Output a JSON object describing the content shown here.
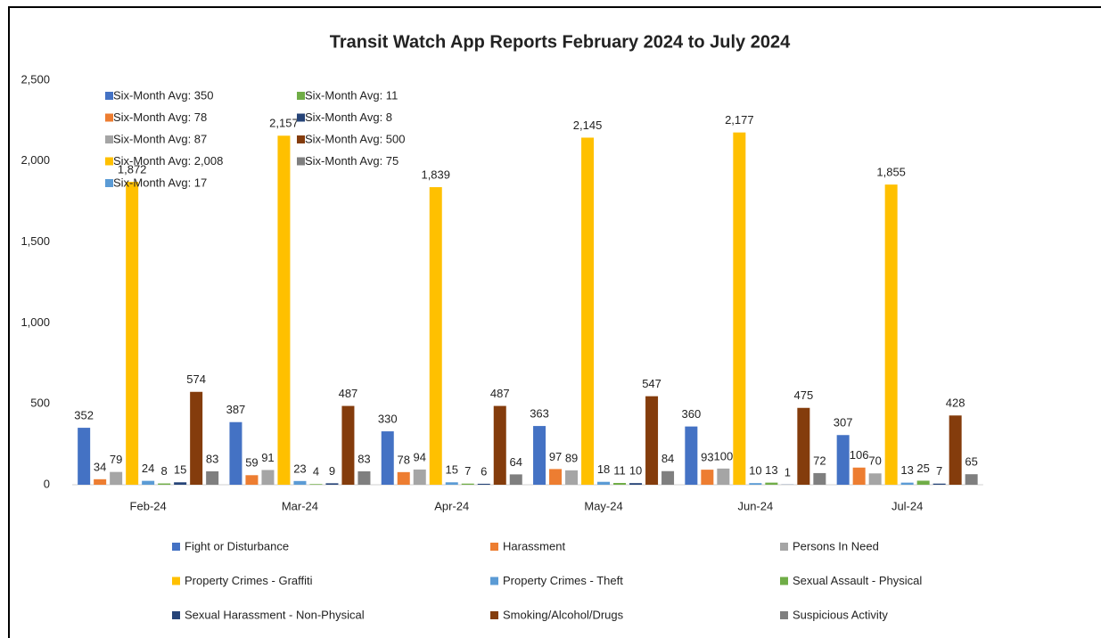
{
  "chart_data": {
    "type": "bar",
    "title": "Transit Watch App Reports February 2024 to July 2024",
    "categories": [
      "Feb-24",
      "Mar-24",
      "Apr-24",
      "May-24",
      "Jun-24",
      "Jul-24"
    ],
    "series": [
      {
        "name": "Fight or Disturbance",
        "color": "#4472c4",
        "values": [
          352,
          387,
          330,
          363,
          360,
          307
        ]
      },
      {
        "name": "Harassment",
        "color": "#ed7d31",
        "values": [
          34,
          59,
          78,
          97,
          93,
          106
        ]
      },
      {
        "name": "Persons In Need",
        "color": "#a5a5a5",
        "values": [
          79,
          91,
          94,
          89,
          100,
          70
        ]
      },
      {
        "name": "Property Crimes - Graffiti",
        "color": "#ffc000",
        "values": [
          1872,
          2157,
          1839,
          2145,
          2177,
          1855
        ],
        "value_labels": [
          "1,872",
          "2,157",
          "1,839",
          "2,145",
          "2,177",
          "1,855"
        ]
      },
      {
        "name": "Property Crimes - Theft",
        "color": "#5b9bd5",
        "values": [
          24,
          23,
          15,
          18,
          10,
          13
        ]
      },
      {
        "name": "Sexual Assault - Physical",
        "color": "#70ad47",
        "values": [
          8,
          4,
          7,
          11,
          13,
          25
        ]
      },
      {
        "name": "Sexual Harassment - Non-Physical",
        "color": "#264478",
        "values": [
          15,
          9,
          6,
          10,
          1,
          7
        ]
      },
      {
        "name": "Smoking/Alcohol/Drugs",
        "color": "#843c0c",
        "values": [
          574,
          487,
          487,
          547,
          475,
          428
        ]
      },
      {
        "name": "Suspicious Activity",
        "color": "#7f7f7f",
        "values": [
          83,
          83,
          64,
          84,
          72,
          65
        ]
      }
    ],
    "averages": [
      {
        "label": "Six-Month Avg: 350",
        "color": "#4472c4"
      },
      {
        "label": "Six-Month Avg: 78",
        "color": "#ed7d31"
      },
      {
        "label": "Six-Month Avg: 87",
        "color": "#a5a5a5"
      },
      {
        "label": "Six-Month Avg: 2,008",
        "color": "#ffc000"
      },
      {
        "label": "Six-Month Avg: 17",
        "color": "#5b9bd5"
      },
      {
        "label": "Six-Month Avg: 11",
        "color": "#70ad47"
      },
      {
        "label": "Six-Month Avg: 8",
        "color": "#264478"
      },
      {
        "label": "Six-Month Avg: 500",
        "color": "#843c0c"
      },
      {
        "label": "Six-Month Avg: 75",
        "color": "#7f7f7f"
      }
    ],
    "ylim": [
      0,
      2500
    ],
    "yticks": [
      0,
      500,
      {
        "value": 1000,
        "label": "1,000"
      },
      {
        "value": 1500,
        "label": "1,500"
      },
      {
        "value": 2000,
        "label": "2,000"
      },
      {
        "value": 2500,
        "label": "2,500"
      }
    ],
    "grid": false,
    "legend": "bottom"
  }
}
